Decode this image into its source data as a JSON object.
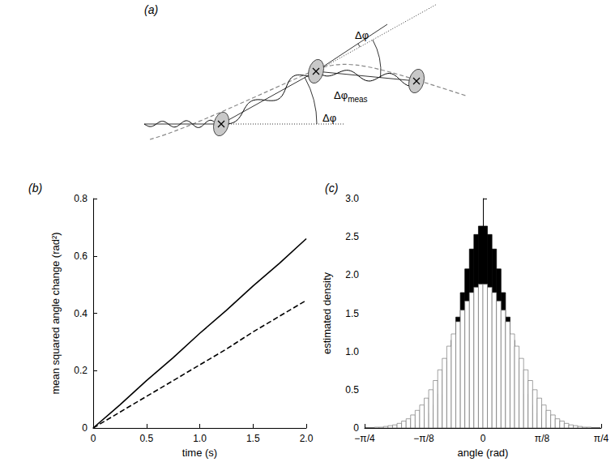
{
  "diagram": {
    "title": "(a)",
    "angle_labels": [
      {
        "text": "Δφ"
      },
      {
        "text": "Δφ",
        "subscript": "meas"
      },
      {
        "text": "Δφ"
      }
    ]
  },
  "chart_data": [
    {
      "type": "line",
      "title": "(b)",
      "x_label": "time (s)",
      "y_label": "mean squared angle change (rad²)",
      "x": [
        0,
        0.25,
        0.5,
        0.75,
        1,
        1.25,
        1.5,
        1.75,
        2
      ],
      "series": [
        {
          "color": "#000000",
          "line_style": "solid",
          "values": [
            0,
            0.08,
            0.165,
            0.245,
            0.33,
            0.41,
            0.495,
            0.575,
            0.66
          ]
        },
        {
          "color": "#000000",
          "line_style": "dashed",
          "values": [
            0,
            0.055,
            0.11,
            0.165,
            0.22,
            0.275,
            0.335,
            0.39,
            0.445
          ]
        }
      ],
      "xlim": [
        0,
        2
      ],
      "xticks": [
        0,
        0.5,
        {
          "value": 1,
          "label": "1.0"
        },
        1.5,
        {
          "value": 2,
          "label": "2.0"
        }
      ],
      "ylim": [
        0,
        0.8
      ],
      "yticks": [
        0,
        0.2,
        0.4,
        0.6,
        0.8
      ],
      "grid": false
    },
    {
      "type": "histogram",
      "title": "(c)",
      "x_label": "angle (rad)",
      "y_label": "estimated density",
      "bins": [
        -0.78,
        -0.75,
        -0.72,
        -0.69,
        -0.66,
        -0.63,
        -0.6,
        -0.57,
        -0.54,
        -0.51,
        -0.48,
        -0.45,
        -0.42,
        -0.39,
        -0.36,
        -0.33,
        -0.3,
        -0.27,
        -0.24,
        -0.21,
        -0.18,
        -0.15,
        -0.12,
        -0.09,
        -0.06,
        -0.03,
        0,
        0.03,
        0.06,
        0.09,
        0.12,
        0.15,
        0.18,
        0.21,
        0.24,
        0.27,
        0.3,
        0.33,
        0.36,
        0.39,
        0.42,
        0.45,
        0.48,
        0.51,
        0.54,
        0.57,
        0.6,
        0.63,
        0.66,
        0.69,
        0.72,
        0.75,
        0.78
      ],
      "series": [
        {
          "color": "#000000",
          "values": [
            0,
            0,
            0,
            0,
            0,
            0,
            0,
            0,
            0,
            0.01,
            0.02,
            0.04,
            0.07,
            0.12,
            0.19,
            0.3,
            0.44,
            0.63,
            0.87,
            1.15,
            1.45,
            1.77,
            2.08,
            2.34,
            2.53,
            2.64,
            2.64,
            2.53,
            2.34,
            2.08,
            1.77,
            1.45,
            1.15,
            0.87,
            0.63,
            0.44,
            0.3,
            0.19,
            0.12,
            0.07,
            0.04,
            0.02,
            0.01,
            0,
            0,
            0,
            0,
            0,
            0,
            0,
            0,
            0
          ]
        },
        {
          "color": "#ffffff",
          "values": [
            0,
            0,
            0.01,
            0.01,
            0.02,
            0.03,
            0.04,
            0.06,
            0.09,
            0.12,
            0.17,
            0.23,
            0.3,
            0.39,
            0.5,
            0.62,
            0.76,
            0.91,
            1.07,
            1.23,
            1.39,
            1.54,
            1.66,
            1.77,
            1.84,
            1.88,
            1.88,
            1.84,
            1.77,
            1.66,
            1.54,
            1.39,
            1.23,
            1.07,
            0.91,
            0.76,
            0.62,
            0.5,
            0.39,
            0.3,
            0.23,
            0.17,
            0.12,
            0.09,
            0.06,
            0.04,
            0.03,
            0.02,
            0.01,
            0.01,
            0,
            0
          ]
        }
      ],
      "xlim": [
        -0.785398,
        0.785398
      ],
      "xticks": [
        {
          "value": -0.785398,
          "label": "−π/4"
        },
        {
          "value": -0.392699,
          "label": "−π/8"
        },
        0,
        {
          "value": 0.392699,
          "label": "π/8"
        },
        {
          "value": 0.785398,
          "label": "π/4"
        }
      ],
      "ylim": [
        0,
        3
      ],
      "yticks": [
        0,
        0.5,
        {
          "value": 1,
          "label": "1.0"
        },
        1.5,
        {
          "value": 2,
          "label": "2.0"
        },
        2.5,
        {
          "value": 3,
          "label": "3.0"
        }
      ],
      "grid": false
    }
  ]
}
